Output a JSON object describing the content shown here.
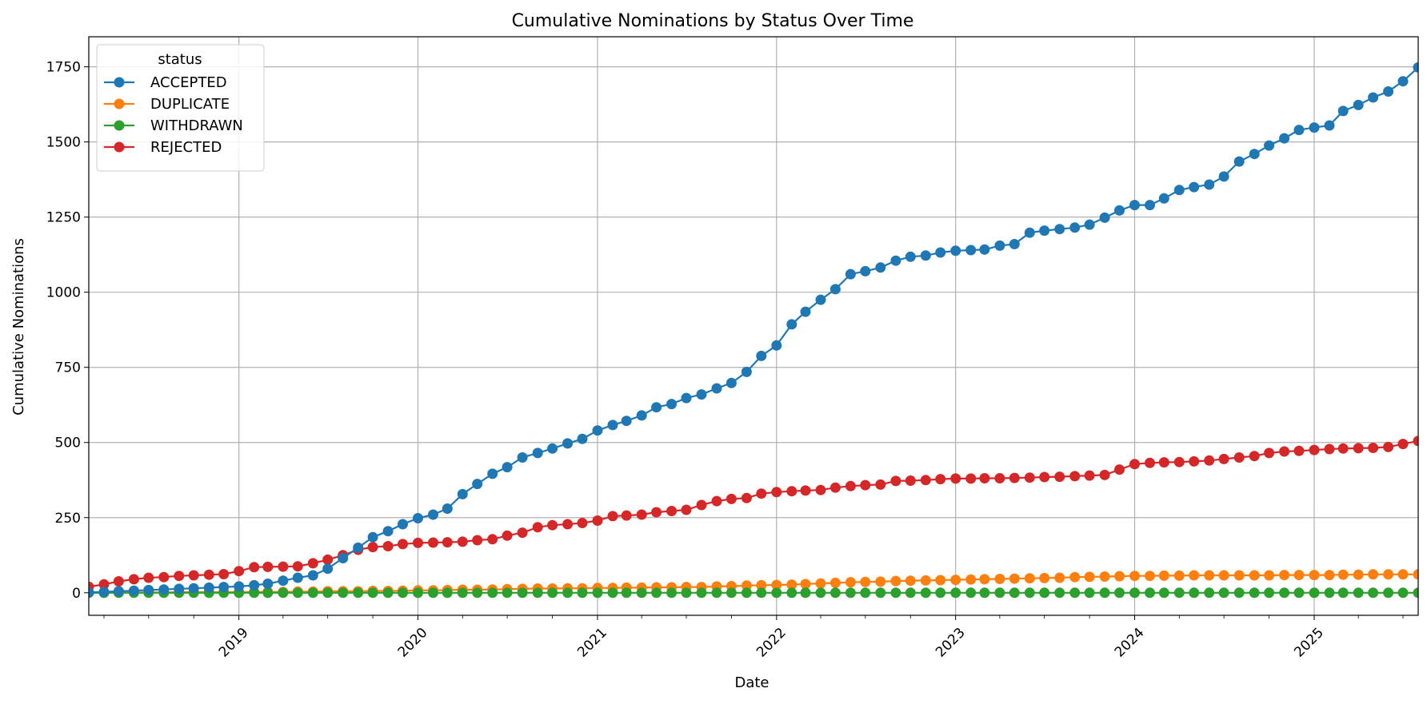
{
  "chart_data": {
    "type": "line",
    "title": "Cumulative Nominations by Status Over Time",
    "xlabel": "Date",
    "ylabel": "Cumulative Nominations",
    "xlim": [
      "2018-03-01",
      "2025-08-01"
    ],
    "ylim": [
      -75,
      1850
    ],
    "x_ticks": [
      "2019",
      "2020",
      "2021",
      "2022",
      "2023",
      "2024",
      "2025"
    ],
    "y_ticks": [
      0,
      250,
      500,
      750,
      1000,
      1250,
      1500,
      1750
    ],
    "grid": true,
    "marker": "circle",
    "legend": {
      "title": "status",
      "placement": "top-left"
    },
    "x_start_month": "2018-03",
    "series": [
      {
        "name": "ACCEPTED",
        "color": "#1f77b4",
        "values": [
          1,
          3,
          5,
          7,
          9,
          11,
          13,
          15,
          17,
          19,
          21,
          25,
          30,
          40,
          50,
          58,
          80,
          115,
          150,
          185,
          205,
          228,
          248,
          260,
          280,
          328,
          362,
          396,
          418,
          450,
          465,
          480,
          497,
          512,
          540,
          558,
          572,
          590,
          617,
          628,
          648,
          660,
          680,
          698,
          735,
          788,
          823,
          893,
          935,
          975,
          1010,
          1060,
          1070,
          1082,
          1105,
          1118,
          1122,
          1132,
          1138,
          1140,
          1142,
          1155,
          1160,
          1198,
          1205,
          1210,
          1215,
          1225,
          1248,
          1272,
          1290,
          1290,
          1312,
          1340,
          1350,
          1358,
          1385,
          1435,
          1460,
          1488,
          1512,
          1540,
          1548,
          1555,
          1603,
          1623,
          1648,
          1668,
          1702,
          1748,
          1765
        ]
      },
      {
        "name": "DUPLICATE",
        "color": "#ff7f0e",
        "values": [
          0,
          0,
          1,
          1,
          1,
          1,
          2,
          2,
          2,
          2,
          2,
          3,
          3,
          3,
          4,
          4,
          5,
          5,
          5,
          6,
          6,
          7,
          8,
          8,
          9,
          10,
          10,
          11,
          12,
          13,
          14,
          14,
          15,
          15,
          16,
          16,
          17,
          17,
          18,
          18,
          19,
          19,
          21,
          22,
          24,
          25,
          26,
          27,
          29,
          31,
          33,
          35,
          36,
          37,
          39,
          40,
          41,
          42,
          43,
          44,
          45,
          46,
          47,
          48,
          49,
          50,
          52,
          53,
          54,
          55,
          56,
          56,
          57,
          57,
          58,
          58,
          58,
          58,
          58,
          58,
          59,
          59,
          59,
          59,
          60,
          60,
          61,
          61,
          61,
          61,
          62
        ]
      },
      {
        "name": "WITHDRAWN",
        "color": "#2ca02c",
        "values": [
          0,
          0,
          0,
          0,
          0,
          0,
          0,
          0,
          0,
          0,
          0,
          0,
          0,
          0,
          0,
          0,
          0,
          0,
          0,
          0,
          0,
          0,
          0,
          0,
          0,
          0,
          0,
          0,
          0,
          0,
          0,
          0,
          0,
          0,
          0,
          0,
          0,
          0,
          0,
          0,
          0,
          0,
          0,
          0,
          0,
          0,
          0,
          0,
          0,
          0,
          0,
          0,
          0,
          0,
          0,
          0,
          0,
          0,
          0,
          0,
          0,
          0,
          0,
          0,
          0,
          0,
          0,
          0,
          0,
          0,
          0,
          0,
          0,
          0,
          0,
          0,
          0,
          0,
          0,
          0,
          0,
          0,
          0,
          0,
          0,
          0,
          0,
          0,
          0,
          0,
          0
        ]
      },
      {
        "name": "REJECTED",
        "color": "#d62728",
        "values": [
          20,
          28,
          38,
          45,
          50,
          52,
          56,
          58,
          60,
          62,
          72,
          85,
          86,
          87,
          88,
          98,
          110,
          125,
          143,
          152,
          155,
          162,
          166,
          167,
          168,
          170,
          175,
          178,
          190,
          200,
          218,
          225,
          228,
          232,
          240,
          255,
          257,
          260,
          268,
          272,
          276,
          292,
          305,
          312,
          315,
          330,
          335,
          338,
          340,
          342,
          350,
          355,
          358,
          360,
          372,
          373,
          375,
          378,
          380,
          380,
          381,
          381,
          382,
          383,
          385,
          386,
          388,
          390,
          392,
          410,
          428,
          432,
          434,
          435,
          437,
          440,
          445,
          450,
          455,
          465,
          470,
          472,
          475,
          478,
          480,
          481,
          482,
          485,
          495,
          505,
          515
        ]
      }
    ]
  }
}
